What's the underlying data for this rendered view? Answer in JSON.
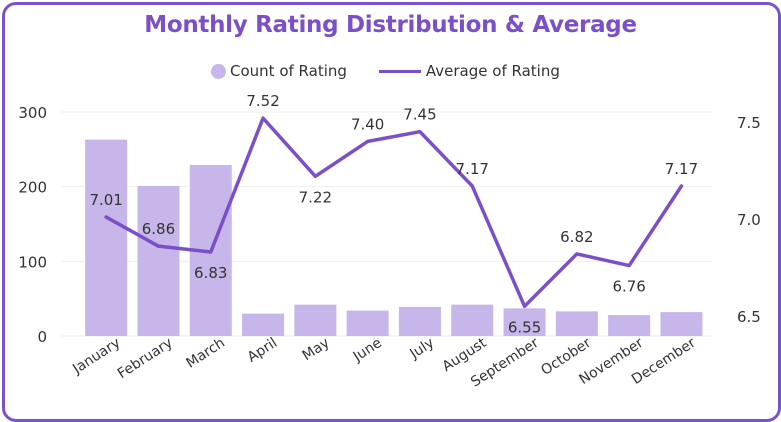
{
  "chart_data": {
    "type": "bar+line",
    "title": "Monthly Rating Distribution & Average",
    "categories": [
      "January",
      "February",
      "March",
      "April",
      "May",
      "June",
      "July",
      "August",
      "September",
      "October",
      "November",
      "December"
    ],
    "series": [
      {
        "name": "Count of Rating",
        "type": "bar",
        "axis": "left",
        "values": [
          263,
          201,
          229,
          30,
          42,
          34,
          39,
          42,
          37,
          33,
          28,
          32
        ]
      },
      {
        "name": "Average of Rating",
        "type": "line",
        "axis": "right",
        "values": [
          7.01,
          6.86,
          6.83,
          7.52,
          7.22,
          7.4,
          7.45,
          7.17,
          6.55,
          6.82,
          6.76,
          7.17
        ],
        "labels": [
          "7.01",
          "6.86",
          "6.83",
          "7.52",
          "7.22",
          "7.40",
          "7.45",
          "7.17",
          "6.55",
          "6.82",
          "6.76",
          "7.17"
        ]
      }
    ],
    "y_left": {
      "ylim": [
        0,
        300
      ],
      "ticks": [
        0,
        100,
        200,
        300
      ],
      "tick_labels": [
        "0",
        "100",
        "200",
        "300"
      ]
    },
    "y_right": {
      "ylim": [
        6.5,
        7.5
      ],
      "ticks": [
        6.5,
        7.0,
        7.5
      ],
      "tick_labels": [
        "6.5",
        "7.0",
        "7.5"
      ]
    },
    "grid": true,
    "legend_position": "top-center"
  },
  "colors": {
    "bar": "#c6b6e9",
    "line": "#7b4fc8",
    "title": "#7b4fc8",
    "border": "#7b52c7",
    "grid": "#eeeeee",
    "text": "#333333"
  }
}
